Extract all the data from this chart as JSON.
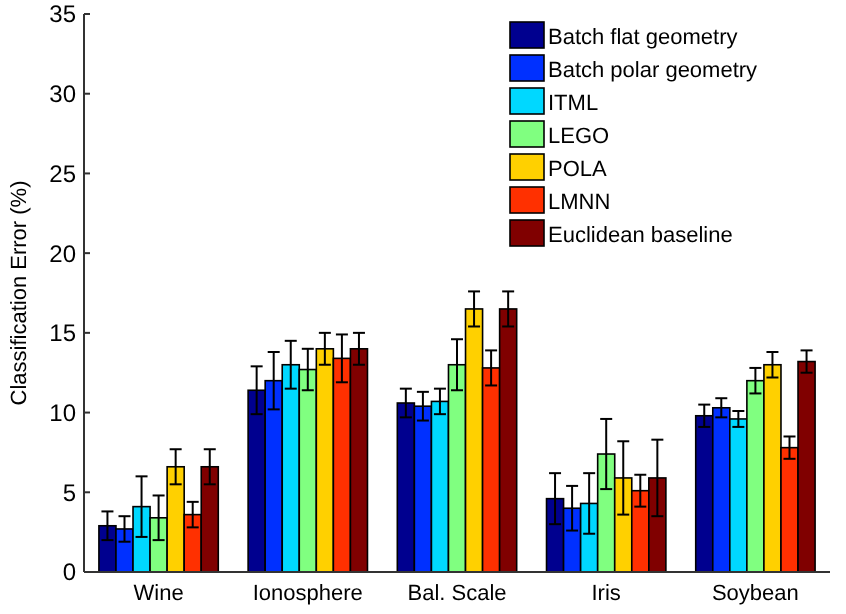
{
  "chart_data": {
    "type": "bar",
    "ylabel": "Classification Error (%)",
    "categories": [
      "Wine",
      "Ionosphere",
      "Bal. Scale",
      "Iris",
      "Soybean"
    ],
    "series": [
      {
        "name": "Batch flat geometry",
        "color": "#00008f",
        "values": [
          2.9,
          11.4,
          10.6,
          4.6,
          9.8
        ],
        "errors": [
          0.9,
          1.5,
          0.9,
          1.6,
          0.7
        ]
      },
      {
        "name": "Batch polar geometry",
        "color": "#0030ff",
        "values": [
          2.7,
          12.0,
          10.4,
          4.0,
          10.3
        ],
        "errors": [
          0.8,
          1.8,
          0.9,
          1.4,
          0.6
        ]
      },
      {
        "name": "ITML",
        "color": "#00d8ff",
        "values": [
          4.1,
          13.0,
          10.7,
          4.3,
          9.6
        ],
        "errors": [
          1.9,
          1.5,
          0.8,
          1.9,
          0.5
        ]
      },
      {
        "name": "LEGO",
        "color": "#80ff80",
        "values": [
          3.4,
          12.7,
          13.0,
          7.4,
          12.0
        ],
        "errors": [
          1.4,
          1.3,
          1.6,
          2.2,
          0.8
        ]
      },
      {
        "name": "POLA",
        "color": "#ffd000",
        "values": [
          6.6,
          14.0,
          16.5,
          5.9,
          13.0
        ],
        "errors": [
          1.1,
          1.0,
          1.1,
          2.3,
          0.8
        ]
      },
      {
        "name": "LMNN",
        "color": "#ff3000",
        "values": [
          3.6,
          13.4,
          12.8,
          5.1,
          7.8
        ],
        "errors": [
          0.8,
          1.5,
          1.1,
          1.0,
          0.7
        ]
      },
      {
        "name": "Euclidean baseline",
        "color": "#800000",
        "values": [
          6.6,
          14.0,
          16.5,
          5.9,
          13.2
        ],
        "errors": [
          1.1,
          1.0,
          1.1,
          2.4,
          0.7
        ]
      }
    ],
    "ylim": [
      0,
      35
    ],
    "yticks": [
      0,
      5,
      10,
      15,
      20,
      25,
      30,
      35
    ],
    "grid": false,
    "legend": "top right"
  }
}
